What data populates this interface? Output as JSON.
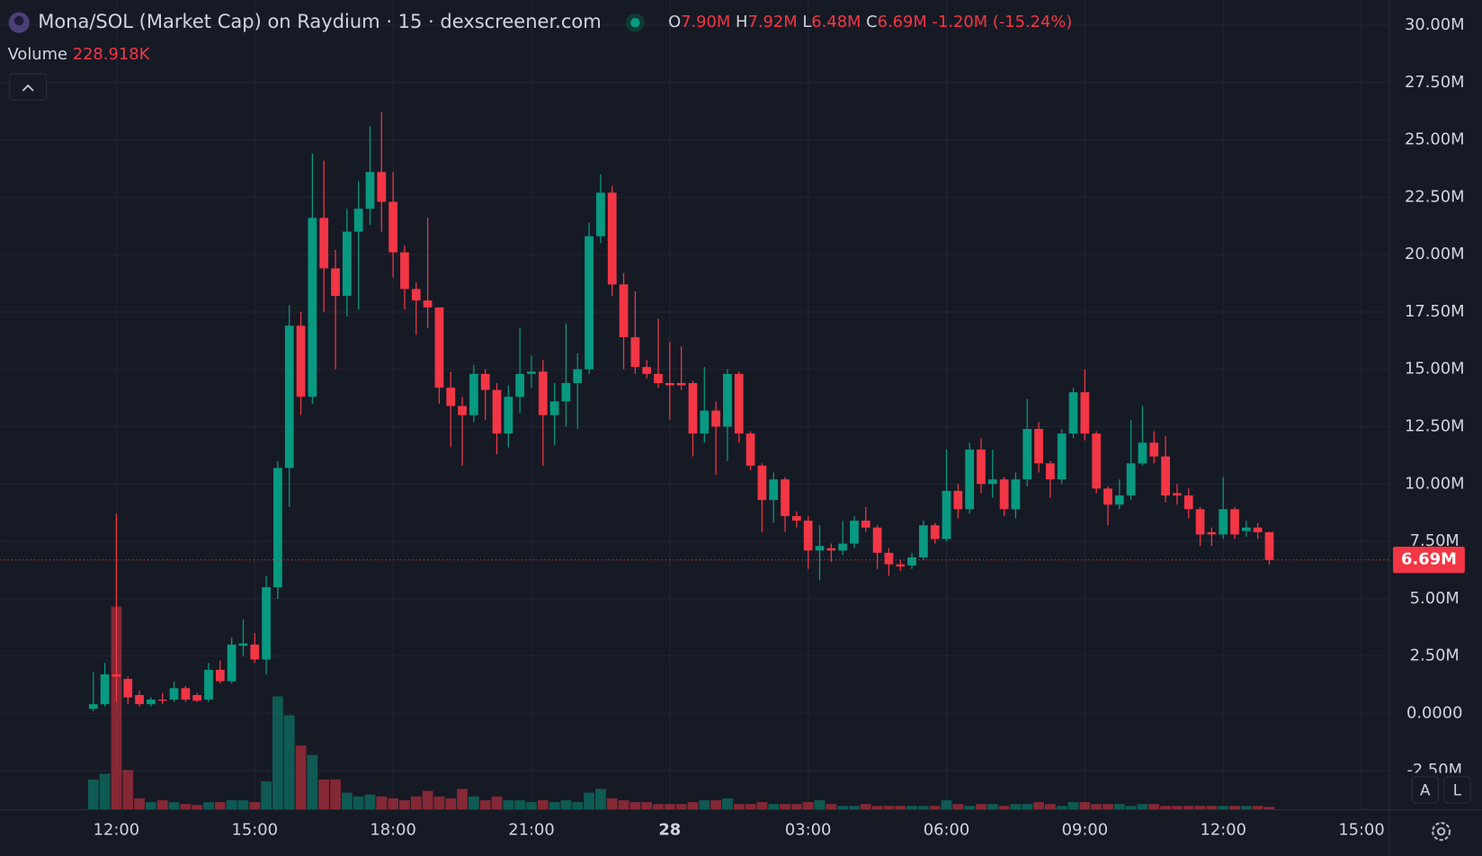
{
  "chart_data": {
    "type": "candlestick",
    "title": "Mona/SOL (Market Cap) on Raydium · 15 · dexscreener.com",
    "ohlc_legend": [
      {
        "key": "O",
        "value": "7.90M"
      },
      {
        "key": "H",
        "value": "7.92M"
      },
      {
        "key": "L",
        "value": "6.48M"
      },
      {
        "key": "C",
        "value": "6.69M"
      }
    ],
    "change_label": "-1.20M (-15.24%)",
    "volume_title": "Volume",
    "volume_label": "228.918K",
    "last_label": "6.69M",
    "buttons": [
      "A",
      "L"
    ],
    "up_color": "#089981",
    "down_color": "#f23645",
    "grid": true,
    "x": [
      11.5,
      11.75,
      12,
      12.25,
      12.5,
      12.75,
      13,
      13.25,
      13.5,
      13.75,
      14,
      14.25,
      14.5,
      14.75,
      15,
      15.25,
      15.5,
      15.75,
      16,
      16.25,
      16.5,
      16.75,
      17,
      17.25,
      17.5,
      17.75,
      18,
      18.25,
      18.5,
      18.75,
      19,
      19.25,
      19.5,
      19.75,
      20,
      20.25,
      20.5,
      20.75,
      21,
      21.25,
      21.5,
      21.75,
      22,
      22.25,
      22.5,
      22.75,
      23,
      23.25,
      23.5,
      23.75,
      24,
      24.25,
      24.5,
      24.75,
      25,
      25.25,
      25.5,
      25.75,
      26,
      26.25,
      26.5,
      26.75,
      27,
      27.25,
      27.5,
      27.75,
      28,
      28.25,
      28.5,
      28.75,
      29,
      29.25,
      29.5,
      29.75,
      30,
      30.25,
      30.5,
      30.75,
      31,
      31.25,
      31.5,
      31.75,
      32,
      32.25,
      32.5,
      32.75,
      33,
      33.25,
      33.5,
      33.75,
      34,
      34.25,
      34.5,
      34.75,
      35,
      35.25,
      35.5,
      35.75,
      36,
      36.25,
      36.5,
      36.75,
      37
    ],
    "open": [
      0.2,
      0.4,
      1.7,
      1.5,
      0.8,
      0.4,
      0.6,
      0.6,
      1.1,
      0.8,
      0.6,
      1.9,
      1.4,
      2.95,
      3.0,
      2.35,
      5.5,
      10.7,
      16.9,
      13.8,
      21.6,
      19.4,
      18.2,
      21.0,
      22.0,
      23.6,
      22.3,
      20.1,
      18.5,
      18.0,
      17.7,
      14.2,
      13.4,
      13.0,
      14.8,
      14.1,
      12.2,
      13.8,
      14.8,
      14.9,
      13.0,
      13.6,
      14.4,
      15.0,
      20.8,
      22.7,
      18.7,
      16.4,
      15.1,
      14.8,
      14.4,
      14.4,
      14.4,
      12.2,
      13.2,
      12.5,
      14.8,
      12.2,
      10.8,
      9.3,
      10.2,
      8.6,
      8.4,
      7.1,
      7.2,
      7.1,
      7.4,
      8.4,
      8.1,
      7.0,
      6.5,
      6.45,
      6.8,
      8.2,
      7.6,
      9.7,
      8.9,
      11.5,
      10.0,
      10.2,
      8.9,
      10.2,
      12.4,
      10.9,
      10.2,
      12.2,
      14.0,
      12.2,
      9.8,
      9.1,
      9.5,
      10.9,
      11.8,
      11.2,
      9.6,
      9.5,
      8.9,
      7.9,
      7.8,
      8.9,
      7.95,
      8.1,
      7.9
    ],
    "high": [
      1.8,
      2.2,
      8.7,
      1.6,
      1.0,
      0.7,
      0.9,
      1.4,
      1.2,
      0.9,
      2.2,
      2.3,
      3.3,
      4.1,
      3.5,
      6.0,
      11.0,
      17.8,
      17.5,
      24.4,
      24.1,
      20.2,
      22.0,
      23.2,
      25.6,
      26.2,
      23.6,
      20.4,
      18.8,
      21.6,
      17.7,
      14.9,
      13.8,
      15.2,
      15.0,
      14.4,
      14.3,
      16.8,
      15.6,
      15.4,
      14.4,
      17.0,
      15.7,
      21.4,
      23.5,
      23.0,
      19.2,
      18.4,
      15.4,
      17.2,
      16.2,
      16.0,
      14.5,
      15.1,
      13.6,
      15.0,
      14.9,
      12.3,
      10.9,
      10.5,
      10.3,
      8.8,
      8.6,
      8.2,
      7.4,
      8.4,
      8.6,
      9.0,
      8.2,
      7.2,
      6.7,
      7.0,
      8.4,
      8.3,
      11.5,
      10.0,
      11.8,
      12.0,
      11.5,
      10.3,
      10.5,
      13.7,
      12.7,
      11.0,
      12.4,
      14.2,
      15.0,
      12.3,
      9.9,
      10.2,
      12.8,
      13.4,
      12.3,
      12.1,
      10.0,
      9.8,
      9.0,
      8.1,
      10.3,
      9.0,
      8.4,
      8.3,
      7.92
    ],
    "low": [
      0.1,
      0.3,
      0.5,
      0.4,
      0.3,
      0.3,
      0.4,
      0.5,
      0.5,
      0.5,
      0.5,
      1.3,
      1.3,
      2.5,
      2.2,
      1.7,
      5.0,
      9.0,
      13.0,
      13.5,
      17.5,
      15.0,
      17.3,
      17.6,
      21.3,
      21.0,
      19.0,
      17.6,
      16.5,
      16.8,
      13.5,
      11.6,
      10.8,
      12.7,
      12.8,
      11.3,
      11.6,
      13.1,
      14.2,
      10.8,
      11.7,
      12.5,
      12.4,
      14.8,
      20.5,
      18.2,
      15.0,
      14.8,
      14.6,
      14.2,
      12.8,
      14.1,
      11.2,
      11.8,
      10.4,
      11.0,
      11.8,
      10.6,
      7.9,
      8.3,
      7.9,
      8.1,
      6.3,
      5.8,
      6.6,
      6.9,
      7.2,
      7.9,
      6.3,
      6.0,
      6.2,
      6.3,
      6.7,
      7.4,
      7.5,
      8.5,
      8.7,
      9.6,
      9.4,
      8.6,
      8.5,
      9.9,
      10.5,
      9.4,
      10.0,
      12.0,
      11.9,
      9.6,
      8.2,
      8.9,
      9.3,
      10.8,
      10.9,
      9.2,
      9.1,
      8.5,
      7.3,
      7.3,
      7.6,
      7.6,
      7.7,
      7.6,
      6.48
    ],
    "close": [
      0.4,
      1.7,
      1.6,
      0.7,
      0.4,
      0.6,
      0.55,
      1.1,
      0.6,
      0.55,
      1.9,
      1.4,
      3.0,
      3.05,
      2.35,
      5.5,
      10.7,
      16.9,
      13.8,
      21.6,
      19.4,
      18.2,
      21.0,
      22.0,
      23.6,
      22.3,
      20.1,
      18.5,
      18.0,
      17.7,
      14.2,
      13.4,
      13.0,
      14.8,
      14.1,
      12.2,
      13.8,
      14.8,
      14.9,
      13.0,
      13.6,
      14.4,
      15.0,
      20.8,
      22.7,
      18.7,
      16.4,
      15.1,
      14.8,
      14.4,
      14.3,
      14.3,
      12.2,
      13.2,
      12.5,
      14.8,
      12.2,
      10.8,
      9.3,
      10.2,
      8.6,
      8.4,
      7.1,
      7.3,
      7.1,
      7.4,
      8.4,
      8.1,
      7.0,
      6.5,
      6.4,
      6.8,
      8.2,
      7.6,
      9.7,
      8.9,
      11.5,
      10.0,
      10.2,
      8.9,
      10.2,
      12.4,
      10.9,
      10.2,
      12.2,
      14.0,
      12.2,
      9.8,
      9.1,
      9.5,
      10.9,
      11.8,
      11.2,
      9.5,
      9.5,
      8.9,
      7.8,
      7.8,
      8.9,
      7.8,
      8.1,
      7.9,
      6.69
    ],
    "volume": [
      2432,
      2888,
      16340,
      3192,
      912,
      608,
      760,
      608,
      456,
      380,
      608,
      608,
      760,
      760,
      608,
      2280,
      9120,
      7600,
      5168,
      4408,
      2432,
      2432,
      1368,
      1064,
      1216,
      1064,
      912,
      760,
      1064,
      1520,
      1064,
      912,
      1672,
      1064,
      760,
      1064,
      760,
      760,
      608,
      760,
      608,
      760,
      608,
      1368,
      1672,
      912,
      760,
      608,
      608,
      456,
      456,
      456,
      608,
      760,
      760,
      912,
      456,
      456,
      608,
      456,
      456,
      456,
      608,
      760,
      456,
      304,
      304,
      456,
      304,
      304,
      304,
      304,
      304,
      304,
      760,
      456,
      304,
      456,
      456,
      304,
      456,
      456,
      608,
      456,
      304,
      608,
      608,
      456,
      456,
      456,
      304,
      456,
      456,
      304,
      304,
      304,
      304,
      304,
      304,
      304,
      304,
      304,
      228.918
    ],
    "xlim": [
      9.48,
      39.6
    ],
    "xticks": [
      {
        "value": 12,
        "label": "12:00"
      },
      {
        "value": 15,
        "label": "15:00"
      },
      {
        "value": 18,
        "label": "18:00"
      },
      {
        "value": 21,
        "label": "21:00"
      },
      {
        "value": 24,
        "label": "28"
      },
      {
        "value": 27,
        "label": "03:00"
      },
      {
        "value": 30,
        "label": "06:00"
      },
      {
        "value": 33,
        "label": "09:00"
      },
      {
        "value": 36,
        "label": "12:00"
      },
      {
        "value": 39,
        "label": "15:00"
      }
    ],
    "ylim": [
      -4.2,
      31.1
    ],
    "yticks": [
      {
        "value": 30,
        "label": "30.00M"
      },
      {
        "value": 27.5,
        "label": "27.50M"
      },
      {
        "value": 25,
        "label": "25.00M"
      },
      {
        "value": 22.5,
        "label": "22.50M"
      },
      {
        "value": 20,
        "label": "20.00M"
      },
      {
        "value": 17.5,
        "label": "17.50M"
      },
      {
        "value": 15,
        "label": "15.00M"
      },
      {
        "value": 12.5,
        "label": "12.50M"
      },
      {
        "value": 10,
        "label": "10.00M"
      },
      {
        "value": 7.5,
        "label": "7.50M"
      },
      {
        "value": 5,
        "label": "5.00M"
      },
      {
        "value": 2.5,
        "label": "2.50M"
      },
      {
        "value": 0,
        "label": "0.0000"
      },
      {
        "value": -2.5,
        "label": "-2.50M"
      }
    ]
  }
}
